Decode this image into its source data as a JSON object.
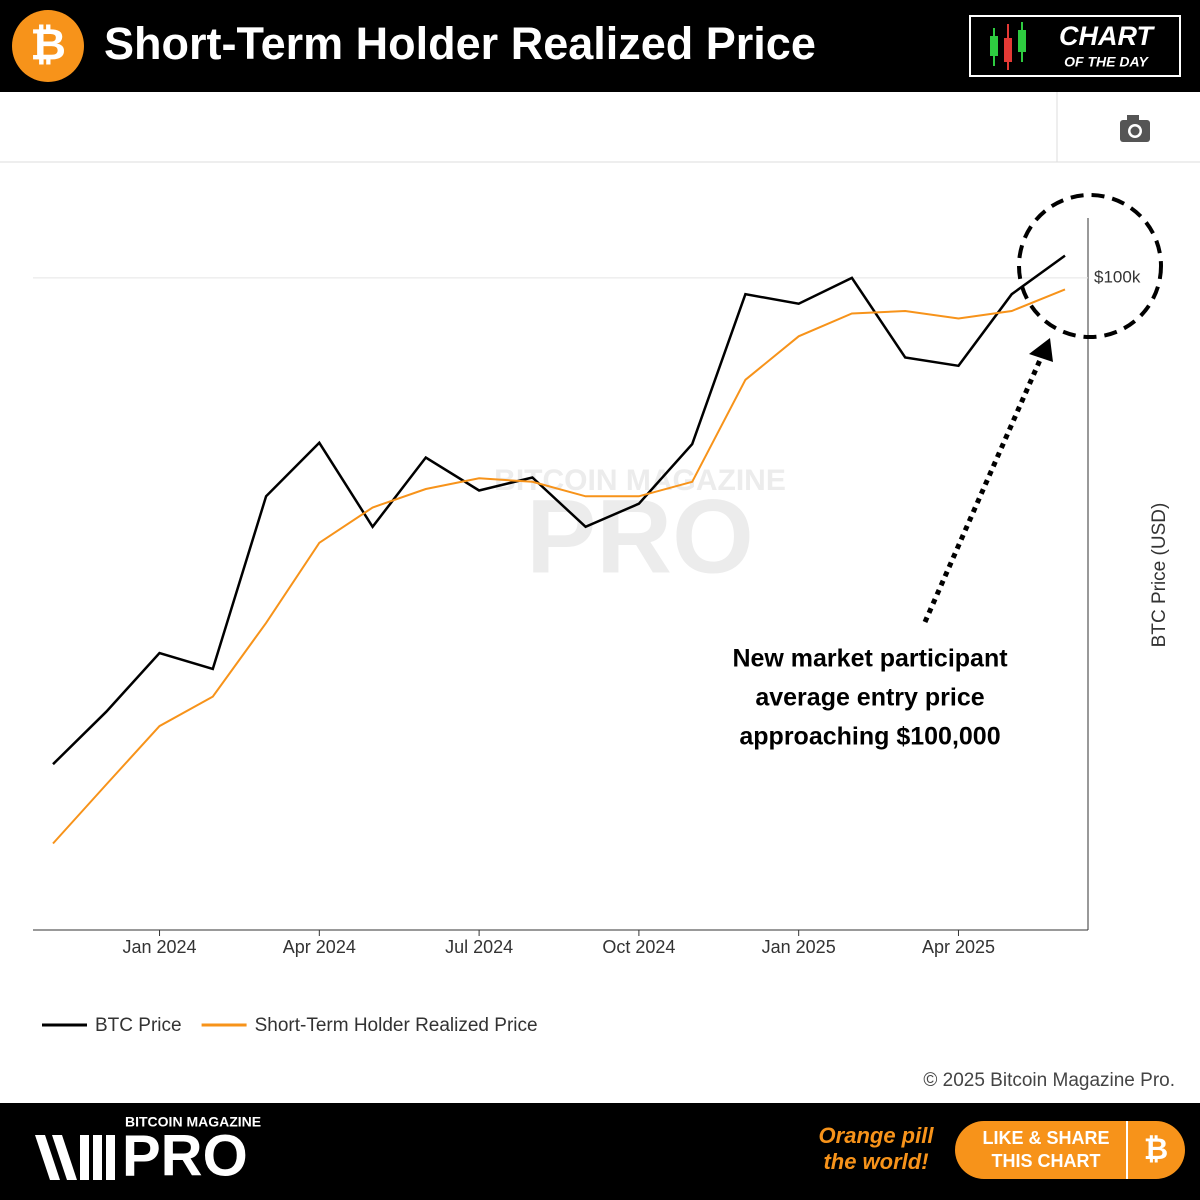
{
  "header": {
    "title": "Short-Term Holder Realized Price",
    "badge_line1": "CHART",
    "badge_line2": "OF THE DAY"
  },
  "chart_data": {
    "type": "line",
    "x": [
      "2023-11",
      "2023-12",
      "2024-01",
      "2024-02",
      "2024-03",
      "2024-04",
      "2024-05",
      "2024-06",
      "2024-07",
      "2024-08",
      "2024-09",
      "2024-10",
      "2024-11",
      "2024-12",
      "2025-01",
      "2025-02",
      "2025-03",
      "2025-04",
      "2025-05",
      "2025-06"
    ],
    "series": [
      {
        "name": "BTC Price",
        "color": "#000000",
        "values": [
          34500,
          38700,
          44000,
          42500,
          62000,
          69700,
          58000,
          67500,
          62800,
          64600,
          58000,
          61000,
          69500,
          96500,
          94500,
          100000,
          84000,
          82500,
          96500,
          105000
        ]
      },
      {
        "name": "Short-Term Holder Realized Price",
        "color": "#f7931a",
        "values": [
          29000,
          33000,
          37500,
          40000,
          47000,
          56000,
          60500,
          63000,
          64500,
          64000,
          62000,
          62000,
          64000,
          80000,
          88000,
          92500,
          93000,
          91500,
          93000,
          97500
        ]
      }
    ],
    "xlim": [
      "2023-11",
      "2025-06"
    ],
    "xticks": [
      {
        "value": "2024-01",
        "label": "Jan 2024"
      },
      {
        "value": "2024-04",
        "label": "Apr 2024"
      },
      {
        "value": "2024-07",
        "label": "Jul 2024"
      },
      {
        "value": "2024-10",
        "label": "Oct 2024"
      },
      {
        "value": "2025-01",
        "label": "Jan 2025"
      },
      {
        "value": "2025-04",
        "label": "Apr 2025"
      }
    ],
    "ylim": [
      24000,
      114000
    ],
    "yticks": [
      {
        "value": 100000,
        "label": "$100k"
      }
    ],
    "log_scale": true,
    "grid": true,
    "legend": "bottom-left",
    "ylabel": "BTC Price (USD)",
    "annotation": [
      "New market participant",
      "average entry price",
      "approaching $100,000"
    ],
    "watermark": [
      "BITCOIN MAGAZINE",
      "PRO"
    ],
    "copyright": "© 2025 Bitcoin Magazine Pro."
  },
  "footer": {
    "brand_line1": "BITCOIN MAGAZINE",
    "brand_line2": "PRO",
    "slogan_line1": "Orange pill",
    "slogan_line2": "the world!",
    "button_line1": "LIKE & SHARE",
    "button_line2": "THIS CHART"
  }
}
